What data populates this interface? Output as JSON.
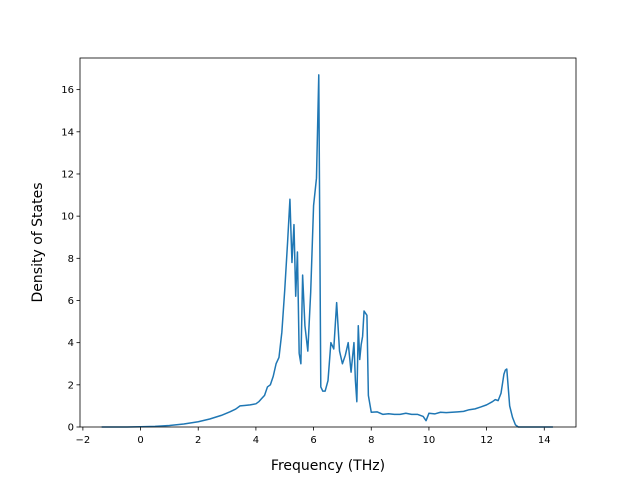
{
  "chart_data": {
    "type": "line",
    "title": "",
    "xlabel": "Frequency (THz)",
    "ylabel": "Density of States",
    "xlim": [
      -2.1,
      15.1
    ],
    "ylim": [
      0,
      17.5
    ],
    "x_ticks": [
      -2,
      0,
      2,
      4,
      6,
      8,
      10,
      12,
      14
    ],
    "y_ticks": [
      0,
      2,
      4,
      6,
      8,
      10,
      12,
      14,
      16
    ],
    "grid": false,
    "legend": "none",
    "series": [
      {
        "color": "#1f77b4",
        "x": [
          -1.35,
          -1.0,
          -0.5,
          0.0,
          0.5,
          1.0,
          1.5,
          2.0,
          2.4,
          2.8,
          3.1,
          3.3,
          3.45,
          3.6,
          3.8,
          4.0,
          4.1,
          4.2,
          4.3,
          4.4,
          4.5,
          4.6,
          4.7,
          4.8,
          4.9,
          5.0,
          5.1,
          5.18,
          5.25,
          5.32,
          5.38,
          5.44,
          5.5,
          5.56,
          5.62,
          5.7,
          5.8,
          5.9,
          6.0,
          6.1,
          6.18,
          6.25,
          6.32,
          6.4,
          6.5,
          6.6,
          6.7,
          6.8,
          6.9,
          7.0,
          7.1,
          7.2,
          7.3,
          7.4,
          7.45,
          7.5,
          7.55,
          7.6,
          7.65,
          7.7,
          7.75,
          7.8,
          7.85,
          7.9,
          8.0,
          8.2,
          8.4,
          8.6,
          8.8,
          9.0,
          9.2,
          9.4,
          9.6,
          9.8,
          9.9,
          10.0,
          10.2,
          10.4,
          10.6,
          10.8,
          11.0,
          11.2,
          11.4,
          11.6,
          11.8,
          12.0,
          12.2,
          12.3,
          12.4,
          12.5,
          12.6,
          12.65,
          12.7,
          12.8,
          12.9,
          13.0,
          13.1,
          13.3,
          13.6,
          14.0,
          14.3
        ],
        "y": [
          0.0,
          0.0,
          0.0,
          0.01,
          0.03,
          0.07,
          0.14,
          0.25,
          0.38,
          0.55,
          0.72,
          0.85,
          1.0,
          1.02,
          1.05,
          1.1,
          1.2,
          1.35,
          1.5,
          1.9,
          2.0,
          2.4,
          3.0,
          3.3,
          4.5,
          6.5,
          8.8,
          10.8,
          7.8,
          9.6,
          6.2,
          8.3,
          3.5,
          3.0,
          7.2,
          4.8,
          3.6,
          6.4,
          10.5,
          11.8,
          16.7,
          1.9,
          1.7,
          1.7,
          2.2,
          4.0,
          3.7,
          5.9,
          3.6,
          3.0,
          3.4,
          4.0,
          2.6,
          4.0,
          2.2,
          1.2,
          4.8,
          3.2,
          3.9,
          4.3,
          5.5,
          5.4,
          5.3,
          1.5,
          0.7,
          0.72,
          0.6,
          0.63,
          0.6,
          0.6,
          0.65,
          0.6,
          0.6,
          0.5,
          0.3,
          0.65,
          0.62,
          0.7,
          0.68,
          0.7,
          0.72,
          0.74,
          0.82,
          0.86,
          0.95,
          1.05,
          1.2,
          1.3,
          1.25,
          1.6,
          2.5,
          2.7,
          2.75,
          1.0,
          0.45,
          0.1,
          0.0,
          0.0,
          0.0,
          0.0,
          0.0
        ]
      }
    ]
  }
}
